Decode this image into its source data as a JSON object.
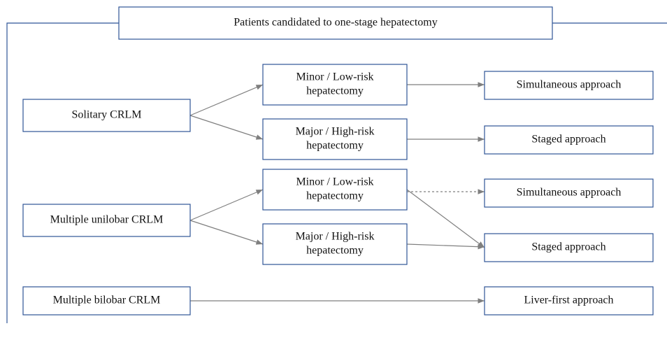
{
  "title": "Patients candidated to one-stage hepatectomy",
  "nodes": [
    {
      "lines": [
        "Solitary CRLM"
      ]
    },
    {
      "lines": [
        "Minor / Low-risk",
        "hepatectomy"
      ]
    },
    {
      "lines": [
        "Major / High-risk",
        "hepatectomy"
      ]
    },
    {
      "lines": [
        "Simultaneous approach"
      ]
    },
    {
      "lines": [
        "Staged approach"
      ]
    },
    {
      "lines": [
        "Multiple unilobar CRLM"
      ]
    },
    {
      "lines": [
        "Minor / Low-risk",
        "hepatectomy"
      ]
    },
    {
      "lines": [
        "Major / High-risk",
        "hepatectomy"
      ]
    },
    {
      "lines": [
        "Simultaneous approach"
      ]
    },
    {
      "lines": [
        "Staged approach"
      ]
    },
    {
      "lines": [
        "Multiple bilobar CRLM"
      ]
    },
    {
      "lines": [
        "Liver-first approach"
      ]
    }
  ]
}
